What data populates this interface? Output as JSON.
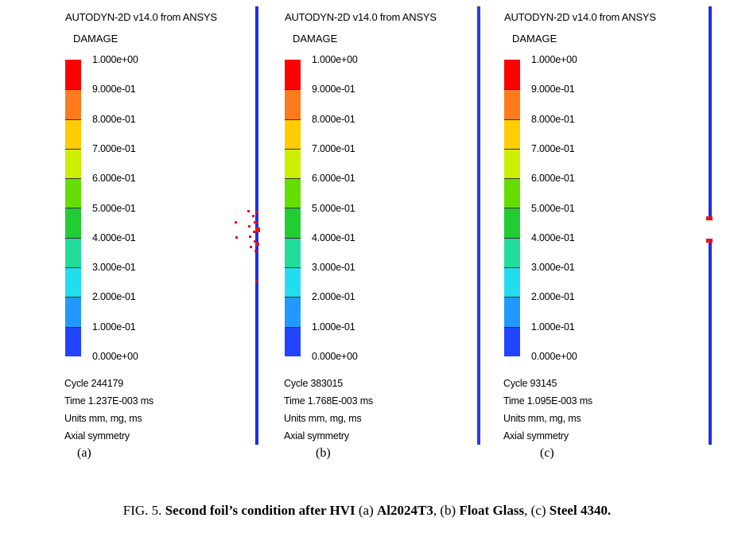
{
  "panels": [
    {
      "title": "AUTODYN-2D v14.0 from ANSYS",
      "quantity": "DAMAGE",
      "cycle": "Cycle 244179",
      "time": "Time 1.237E-003 ms",
      "units": "Units mm, mg, ms",
      "symmetry": "Axial symmetry",
      "tag": "(a)"
    },
    {
      "title": "AUTODYN-2D v14.0 from ANSYS",
      "quantity": "DAMAGE",
      "cycle": "Cycle 383015",
      "time": "Time 1.768E-003 ms",
      "units": "Units mm, mg, ms",
      "symmetry": "Axial symmetry",
      "tag": "(b)"
    },
    {
      "title": "AUTODYN-2D v14.0 from ANSYS",
      "quantity": "DAMAGE",
      "cycle": "Cycle 93145",
      "time": "Time 1.095E-003 ms",
      "units": "Units mm, mg, ms",
      "symmetry": "Axial symmetry",
      "tag": "(c)"
    }
  ],
  "legend": {
    "labels": [
      "1.000e+00",
      "9.000e-01",
      "8.000e-01",
      "7.000e-01",
      "6.000e-01",
      "5.000e-01",
      "4.000e-01",
      "3.000e-01",
      "2.000e-01",
      "1.000e-01",
      "0.000e+00"
    ],
    "colors": [
      "#ff0000",
      "#ff7a1a",
      "#ffcc00",
      "#ccee00",
      "#66dd00",
      "#22cc33",
      "#22dd99",
      "#22ddee",
      "#2299ff",
      "#2244ff"
    ]
  },
  "foil_color": "#1f2ee6",
  "damage_color": "#ef1010",
  "caption": {
    "prefix": "FIG. 5.",
    "lead": "Second foil’s condition after HVI",
    "a_tag": "(a)",
    "a": "Al2024T3",
    "sep1": ",",
    "b_tag": "(b)",
    "b": "Float Glass",
    "sep2": ",",
    "c_tag": "(c)",
    "c": "Steel 4340",
    "end": "."
  }
}
